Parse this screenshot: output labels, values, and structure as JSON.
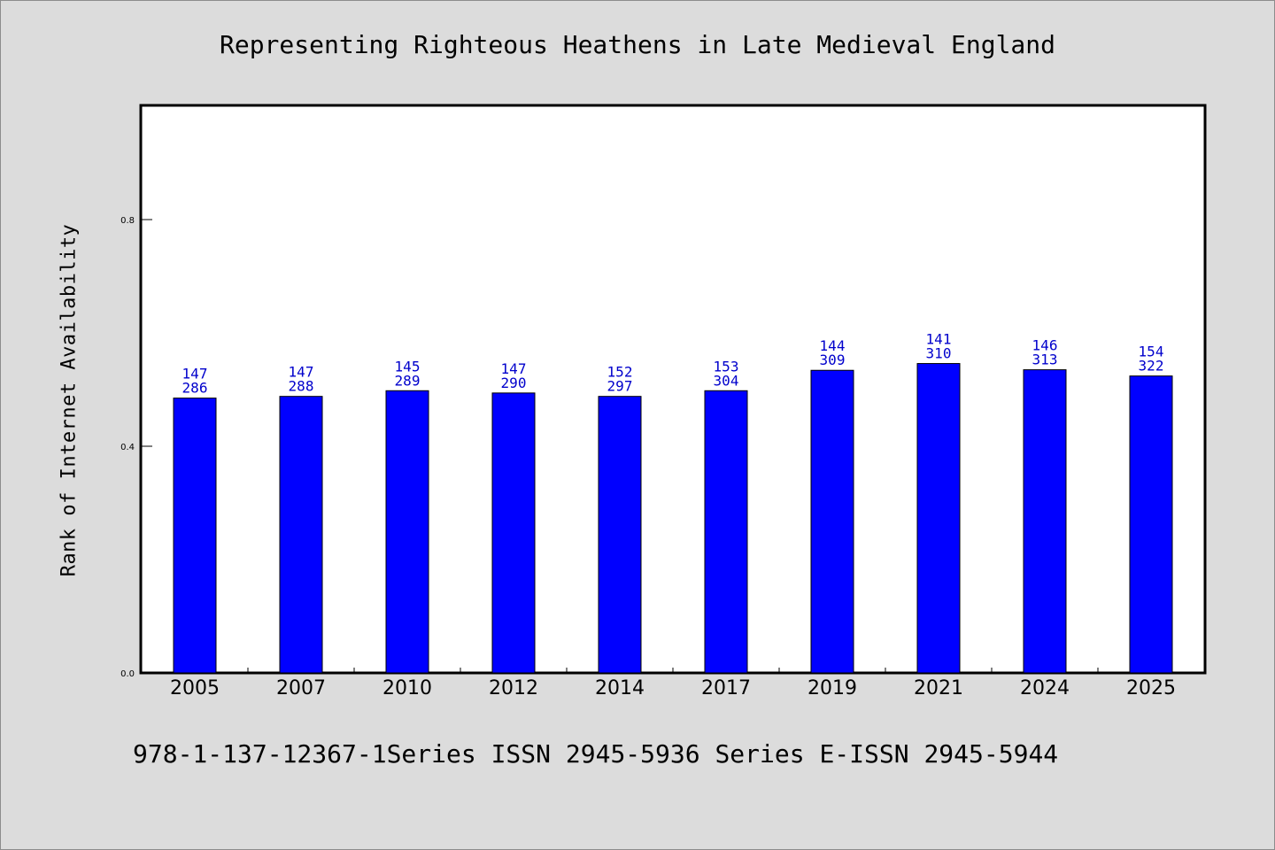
{
  "chart_data": {
    "type": "bar",
    "title": "Representing Righteous Heathens in Late Medieval England",
    "ylabel": "Rank of Internet Availability",
    "xlabel": "",
    "footer": "978-1-137-12367-1Series ISSN 2945-5936 Series E-ISSN 2945-5944",
    "categories": [
      "2005",
      "2007",
      "2010",
      "2012",
      "2014",
      "2017",
      "2019",
      "2021",
      "2024",
      "2025"
    ],
    "values": [
      0.485,
      0.488,
      0.498,
      0.494,
      0.488,
      0.498,
      0.534,
      0.546,
      0.535,
      0.524
    ],
    "label_top": [
      "147",
      "147",
      "145",
      "147",
      "152",
      "153",
      "144",
      "141",
      "146",
      "154"
    ],
    "label_bottom": [
      "286",
      "288",
      "289",
      "290",
      "297",
      "304",
      "309",
      "310",
      "313",
      "322"
    ],
    "ylim": [
      0,
      1.0
    ],
    "yticks": [
      "0.0",
      "0.4",
      "0.8"
    ],
    "ytick_values": [
      0.0,
      0.4,
      0.8
    ],
    "grid": false,
    "colors": {
      "bar": "#0000ff",
      "label": "#0000cc",
      "plot_bg": "#ffffff",
      "page_bg": "#dcdcdc"
    }
  }
}
